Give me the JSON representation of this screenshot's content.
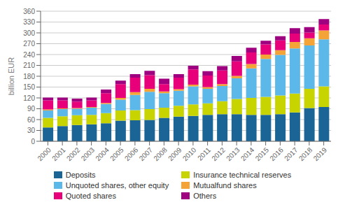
{
  "chart_data": {
    "type": "bar",
    "stacked": true,
    "grid": true,
    "legend": "bottom",
    "ylabel": "billion EUR",
    "categories": [
      "2000",
      "2001",
      "2002",
      "2003",
      "2004",
      "2005",
      "2006",
      "2007",
      "2008",
      "2009",
      "2010",
      "2011",
      "2012",
      "2013",
      "2014",
      "2015",
      "2016",
      "2017",
      "2018",
      "2019"
    ],
    "ylim": [
      0,
      360
    ],
    "yticks": [
      0,
      30,
      60,
      90,
      120,
      150,
      180,
      210,
      240,
      270,
      300,
      330,
      360
    ],
    "series": [
      {
        "name": "Deposits",
        "color": "#1a6496",
        "values": [
          38,
          42,
          45,
          47,
          50,
          57,
          58,
          59,
          65,
          68,
          70,
          73,
          75,
          75,
          73,
          73,
          75,
          80,
          92,
          95
        ]
      },
      {
        "name": "Insurance technical reserves",
        "color": "#c8d400",
        "values": [
          27,
          27,
          27,
          26,
          28,
          28,
          28,
          30,
          28,
          30,
          32,
          32,
          36,
          42,
          47,
          50,
          52,
          52,
          53,
          57
        ]
      },
      {
        "name": "Unquoted shares, other equity",
        "color": "#5bb8e8",
        "values": [
          20,
          20,
          18,
          20,
          25,
          30,
          42,
          48,
          40,
          42,
          50,
          40,
          42,
          57,
          82,
          105,
          112,
          125,
          120,
          130
        ]
      },
      {
        "name": "Mutualfund shares",
        "color": "#f4a336",
        "values": [
          3,
          2,
          2,
          2,
          3,
          5,
          8,
          8,
          5,
          4,
          5,
          5,
          5,
          7,
          12,
          12,
          13,
          18,
          20,
          25
        ]
      },
      {
        "name": "Quoted shares",
        "color": "#e8007a",
        "values": [
          25,
          22,
          18,
          18,
          27,
          38,
          40,
          38,
          20,
          32,
          42,
          32,
          38,
          40,
          32,
          28,
          27,
          23,
          16,
          16
        ]
      },
      {
        "name": "Others",
        "color": "#9e0080",
        "values": [
          8,
          8,
          8,
          8,
          10,
          10,
          10,
          12,
          15,
          10,
          10,
          12,
          12,
          15,
          13,
          10,
          12,
          15,
          15,
          15
        ]
      }
    ]
  }
}
